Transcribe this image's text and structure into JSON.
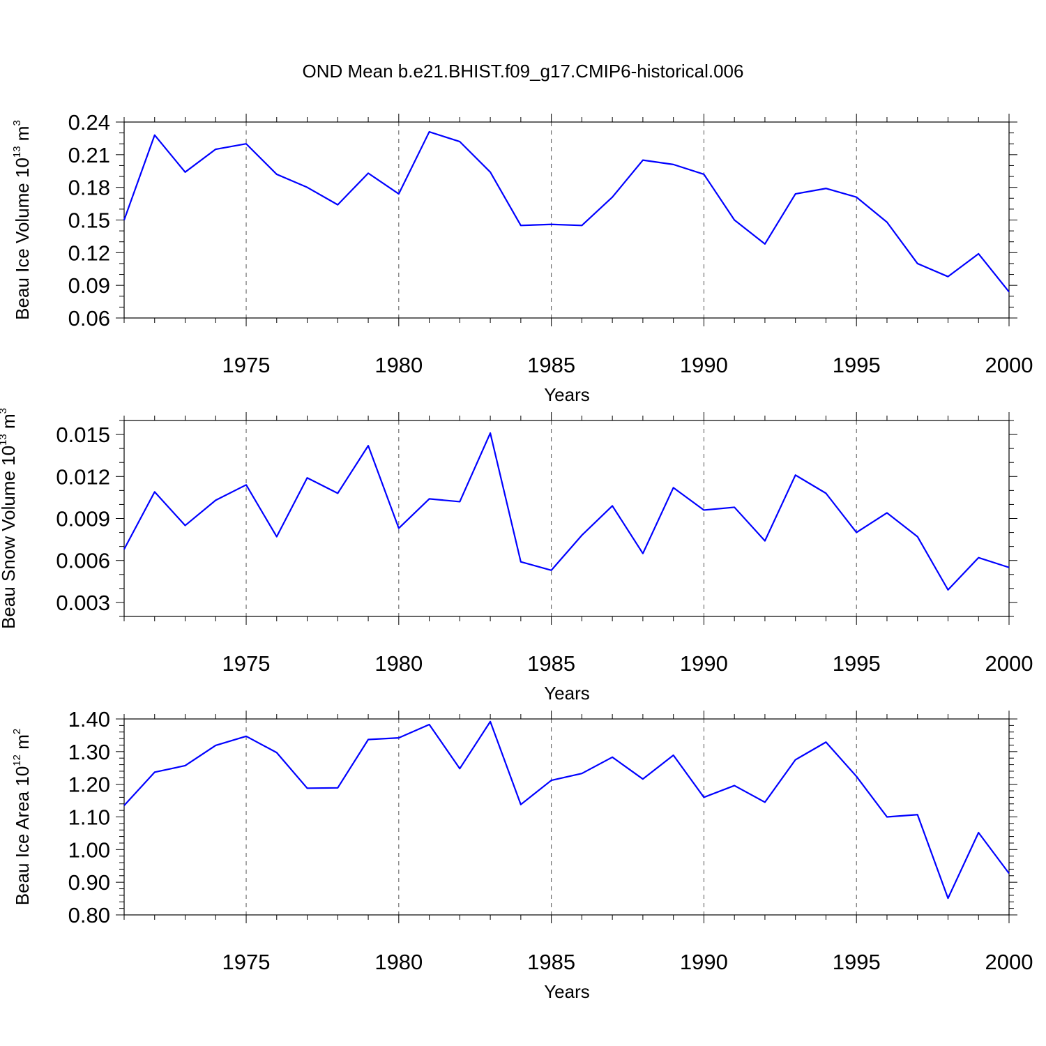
{
  "figure": {
    "title": "OND Mean b.e21.BHIST.f09_g17.CMIP6-historical.006"
  },
  "chart_data": [
    {
      "type": "line",
      "id": "ice-volume",
      "xlabel": "Years",
      "ylabel_main": "Beau Ice Volume 10",
      "ylabel_exp": "13",
      "ylabel_unit": " m",
      "ylabel_unit_exp": "3",
      "xlim": [
        1971,
        2000
      ],
      "ylim": [
        0.06,
        0.24
      ],
      "yticks": [
        0.06,
        0.09,
        0.12,
        0.15,
        0.18,
        0.21,
        0.24
      ],
      "ytick_labels": [
        "0.06",
        "0.09",
        "0.12",
        "0.15",
        "0.18",
        "0.21",
        "0.24"
      ],
      "yminor_step": 0.01,
      "xticks": [
        1975,
        1980,
        1985,
        1990,
        1995,
        2000
      ],
      "xtick_labels": [
        "1975",
        "1980",
        "1985",
        "1990",
        "1995",
        "2000"
      ],
      "grid": "x-major-dashed",
      "color": "#0000ff",
      "x": [
        1971,
        1972,
        1973,
        1974,
        1975,
        1976,
        1977,
        1978,
        1979,
        1980,
        1981,
        1982,
        1983,
        1984,
        1985,
        1986,
        1987,
        1988,
        1989,
        1990,
        1991,
        1992,
        1993,
        1994,
        1995,
        1996,
        1997,
        1998,
        1999,
        2000
      ],
      "y": [
        0.15,
        0.228,
        0.194,
        0.215,
        0.22,
        0.192,
        0.18,
        0.164,
        0.193,
        0.174,
        0.231,
        0.222,
        0.194,
        0.145,
        0.146,
        0.145,
        0.171,
        0.205,
        0.201,
        0.192,
        0.15,
        0.128,
        0.174,
        0.179,
        0.171,
        0.148,
        0.11,
        0.098,
        0.119,
        0.084
      ]
    },
    {
      "type": "line",
      "id": "snow-volume",
      "xlabel": "Years",
      "ylabel_main": "Beau Snow Volume 10",
      "ylabel_exp": "13",
      "ylabel_unit": " m",
      "ylabel_unit_exp": "3",
      "xlim": [
        1971,
        2000
      ],
      "ylim": [
        0.002,
        0.016
      ],
      "yticks": [
        0.003,
        0.006,
        0.009,
        0.012,
        0.015
      ],
      "ytick_labels": [
        "0.003",
        "0.006",
        "0.009",
        "0.012",
        "0.015"
      ],
      "yminor_step": 0.001,
      "xticks": [
        1975,
        1980,
        1985,
        1990,
        1995,
        2000
      ],
      "xtick_labels": [
        "1975",
        "1980",
        "1985",
        "1990",
        "1995",
        "2000"
      ],
      "grid": "x-major-dashed",
      "color": "#0000ff",
      "x": [
        1971,
        1972,
        1973,
        1974,
        1975,
        1976,
        1977,
        1978,
        1979,
        1980,
        1981,
        1982,
        1983,
        1984,
        1985,
        1986,
        1987,
        1988,
        1989,
        1990,
        1991,
        1992,
        1993,
        1994,
        1995,
        1996,
        1997,
        1998,
        1999,
        2000
      ],
      "y": [
        0.0068,
        0.0109,
        0.0085,
        0.0103,
        0.0114,
        0.0077,
        0.0119,
        0.0108,
        0.0142,
        0.0083,
        0.0104,
        0.0102,
        0.0151,
        0.0059,
        0.0053,
        0.0078,
        0.0099,
        0.0065,
        0.0112,
        0.0096,
        0.0098,
        0.0074,
        0.0121,
        0.0108,
        0.008,
        0.0094,
        0.0077,
        0.0039,
        0.0062,
        0.0055
      ]
    },
    {
      "type": "line",
      "id": "ice-area",
      "xlabel": "Years",
      "ylabel_main": "Beau Ice Area 10",
      "ylabel_exp": "12",
      "ylabel_unit": " m",
      "ylabel_unit_exp": "2",
      "xlim": [
        1971,
        2000
      ],
      "ylim": [
        0.8,
        1.4
      ],
      "yticks": [
        0.8,
        0.9,
        1.0,
        1.1,
        1.2,
        1.3,
        1.4
      ],
      "ytick_labels": [
        "0.80",
        "0.90",
        "1.00",
        "1.10",
        "1.20",
        "1.30",
        "1.40"
      ],
      "yminor_step": 0.02,
      "xticks": [
        1975,
        1980,
        1985,
        1990,
        1995,
        2000
      ],
      "xtick_labels": [
        "1975",
        "1980",
        "1985",
        "1990",
        "1995",
        "2000"
      ],
      "grid": "x-major-dashed",
      "color": "#0000ff",
      "x": [
        1971,
        1972,
        1973,
        1974,
        1975,
        1976,
        1977,
        1978,
        1979,
        1980,
        1981,
        1982,
        1983,
        1984,
        1985,
        1986,
        1987,
        1988,
        1989,
        1990,
        1991,
        1992,
        1993,
        1994,
        1995,
        1996,
        1997,
        1998,
        1999,
        2000
      ],
      "y": [
        1.135,
        1.237,
        1.257,
        1.319,
        1.347,
        1.297,
        1.188,
        1.189,
        1.337,
        1.342,
        1.383,
        1.248,
        1.392,
        1.138,
        1.212,
        1.233,
        1.283,
        1.216,
        1.289,
        1.16,
        1.196,
        1.145,
        1.275,
        1.329,
        1.224,
        1.1,
        1.107,
        0.851,
        1.052,
        0.927
      ]
    }
  ]
}
